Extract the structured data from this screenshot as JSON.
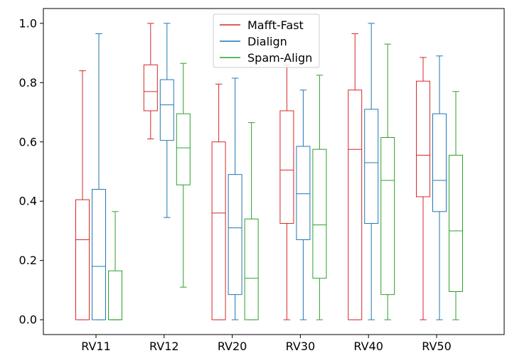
{
  "chart_data": {
    "type": "box",
    "title": "",
    "xlabel": "",
    "ylabel": "",
    "ylim": [
      -0.05,
      1.05
    ],
    "yticks": [
      "0.0",
      "0.2",
      "0.4",
      "0.6",
      "0.8",
      "1.0"
    ],
    "categories": [
      "RV11",
      "RV12",
      "RV20",
      "RV30",
      "RV40",
      "RV50"
    ],
    "legend_position": "top-center",
    "series": [
      {
        "name": "Mafft-Fast",
        "color": "#d62728",
        "boxes": [
          {
            "min": 0.0,
            "q1": 0.0,
            "median": 0.27,
            "q3": 0.405,
            "max": 0.84
          },
          {
            "min": 0.61,
            "q1": 0.705,
            "median": 0.77,
            "q3": 0.86,
            "max": 1.0
          },
          {
            "min": 0.0,
            "q1": 0.0,
            "median": 0.36,
            "q3": 0.6,
            "max": 0.795
          },
          {
            "min": 0.0,
            "q1": 0.325,
            "median": 0.505,
            "q3": 0.705,
            "max": 0.86
          },
          {
            "min": 0.0,
            "q1": 0.0,
            "median": 0.575,
            "q3": 0.775,
            "max": 0.965
          },
          {
            "min": 0.0,
            "q1": 0.415,
            "median": 0.555,
            "q3": 0.805,
            "max": 0.885
          }
        ]
      },
      {
        "name": "Dialign",
        "color": "#1f77b4",
        "boxes": [
          {
            "min": 0.0,
            "q1": 0.0,
            "median": 0.18,
            "q3": 0.44,
            "max": 0.965
          },
          {
            "min": 0.345,
            "q1": 0.605,
            "median": 0.725,
            "q3": 0.81,
            "max": 1.0
          },
          {
            "min": 0.0,
            "q1": 0.085,
            "median": 0.31,
            "q3": 0.49,
            "max": 0.815
          },
          {
            "min": 0.0,
            "q1": 0.27,
            "median": 0.425,
            "q3": 0.585,
            "max": 0.775
          },
          {
            "min": 0.0,
            "q1": 0.325,
            "median": 0.53,
            "q3": 0.71,
            "max": 1.0
          },
          {
            "min": 0.0,
            "q1": 0.365,
            "median": 0.47,
            "q3": 0.695,
            "max": 0.89
          }
        ]
      },
      {
        "name": "Spam-Align",
        "color": "#2ca02c",
        "boxes": [
          {
            "min": 0.0,
            "q1": 0.0,
            "median": 0.0,
            "q3": 0.165,
            "max": 0.365
          },
          {
            "min": 0.11,
            "q1": 0.455,
            "median": 0.58,
            "q3": 0.695,
            "max": 0.865
          },
          {
            "min": 0.0,
            "q1": 0.0,
            "median": 0.14,
            "q3": 0.34,
            "max": 0.665
          },
          {
            "min": 0.0,
            "q1": 0.14,
            "median": 0.32,
            "q3": 0.575,
            "max": 0.825
          },
          {
            "min": 0.0,
            "q1": 0.085,
            "median": 0.47,
            "q3": 0.615,
            "max": 0.93
          },
          {
            "min": 0.0,
            "q1": 0.095,
            "median": 0.3,
            "q3": 0.555,
            "max": 0.77
          }
        ]
      }
    ]
  }
}
